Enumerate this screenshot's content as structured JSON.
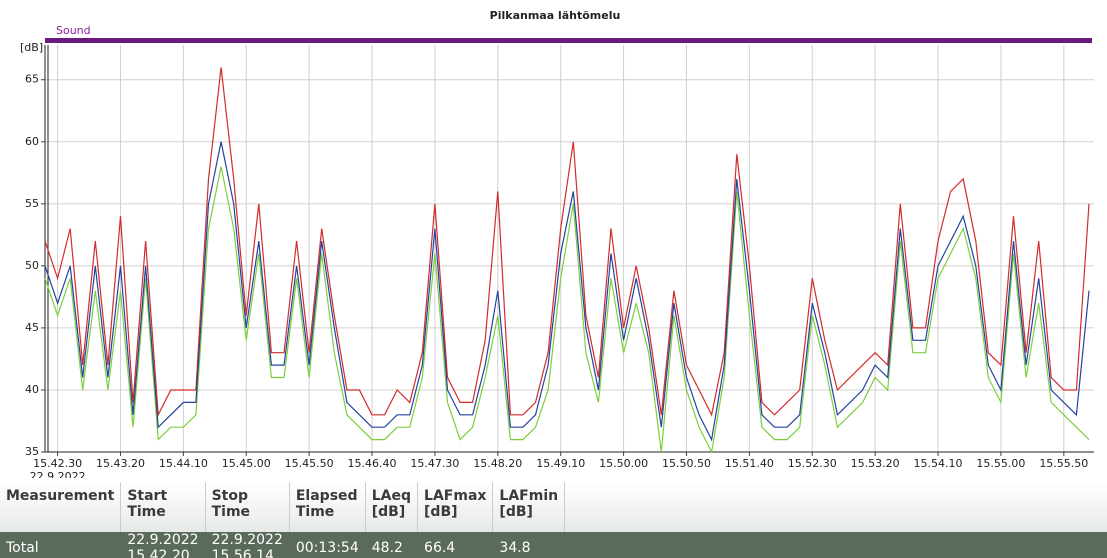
{
  "chart_data": {
    "type": "line",
    "title": "Pilkanmaa lähtömelu",
    "channel_label": "Sound",
    "ylabel": "[dB]",
    "x_date": "22.9.2022",
    "categories": [
      null,
      "15.42.30",
      null,
      null,
      null,
      null,
      "15.43.20",
      null,
      null,
      null,
      null,
      "15.44.10",
      null,
      null,
      null,
      null,
      "15.45.00",
      null,
      null,
      null,
      null,
      "15.45.50",
      null,
      null,
      null,
      null,
      "15.46.40",
      null,
      null,
      null,
      null,
      "15.47.30",
      null,
      null,
      null,
      null,
      "15.48.20",
      null,
      null,
      null,
      null,
      "15.49.10",
      null,
      null,
      null,
      null,
      "15.50.00",
      null,
      null,
      null,
      null,
      "15.50.50",
      null,
      null,
      null,
      null,
      "15.51.40",
      null,
      null,
      null,
      null,
      "15.52.30",
      null,
      null,
      null,
      null,
      "15.53.20",
      null,
      null,
      null,
      null,
      "15.54.10",
      null,
      null,
      null,
      null,
      "15.55.00",
      null,
      null,
      null,
      null,
      "15.55.50",
      null,
      null
    ],
    "series": [
      {
        "color": "#d42a2a",
        "values": [
          52,
          49,
          53,
          42,
          52,
          42,
          54,
          39,
          52,
          38,
          40,
          40,
          40,
          57,
          66,
          57,
          46,
          55,
          43,
          43,
          52,
          43,
          53,
          46,
          40,
          40,
          38,
          38,
          40,
          39,
          43,
          55,
          41,
          39,
          39,
          44,
          56,
          38,
          38,
          39,
          43,
          53,
          60,
          46,
          41,
          53,
          45,
          50,
          45,
          38,
          48,
          42,
          40,
          38,
          43,
          59,
          50,
          39,
          38,
          39,
          40,
          49,
          44,
          40,
          41,
          42,
          43,
          42,
          55,
          45,
          45,
          52,
          56,
          57,
          52,
          43,
          42,
          54,
          43,
          52,
          41,
          40,
          40,
          55
        ]
      },
      {
        "color": "#7ccf3c",
        "values": [
          49,
          46,
          49,
          40,
          48,
          40,
          48,
          37,
          49,
          36,
          37,
          37,
          38,
          53,
          58,
          53,
          44,
          51,
          41,
          41,
          49,
          41,
          51,
          43,
          38,
          37,
          36,
          36,
          37,
          37,
          41,
          51,
          39,
          36,
          37,
          41,
          46,
          36,
          36,
          37,
          40,
          49,
          55,
          43,
          39,
          49,
          43,
          47,
          43,
          35,
          46,
          40,
          37,
          35,
          41,
          56,
          46,
          37,
          36,
          36,
          37,
          46,
          42,
          37,
          38,
          39,
          41,
          40,
          52,
          43,
          43,
          49,
          51,
          53,
          49,
          41,
          39,
          51,
          41,
          47,
          39,
          38,
          37,
          36
        ]
      },
      {
        "color": "#2443a0",
        "values": [
          50,
          47,
          50,
          41,
          50,
          41,
          50,
          38,
          50,
          37,
          38,
          39,
          39,
          55,
          60,
          55,
          45,
          52,
          42,
          42,
          50,
          42,
          52,
          45,
          39,
          38,
          37,
          37,
          38,
          38,
          42,
          53,
          40,
          38,
          38,
          42,
          48,
          37,
          37,
          38,
          42,
          51,
          56,
          45,
          40,
          51,
          44,
          49,
          44,
          37,
          47,
          41,
          38,
          36,
          42,
          57,
          48,
          38,
          37,
          37,
          38,
          47,
          43,
          38,
          39,
          40,
          42,
          41,
          53,
          44,
          44,
          50,
          52,
          54,
          50,
          42,
          40,
          52,
          42,
          49,
          40,
          39,
          38,
          48
        ]
      }
    ],
    "ylim": [
      35,
      67.8
    ],
    "yticks": [
      35,
      40,
      45,
      50,
      55,
      60,
      65
    ],
    "grid": true
  },
  "table": {
    "header": [
      "Measurement",
      "Start Time",
      "Stop Time",
      "Elapsed Time",
      "LAeq\n[dB]",
      "LAFmax\n[dB]",
      "LAFmin\n[dB]"
    ],
    "rows": [
      [
        "Total",
        "22.9.2022 15.42.20",
        "22.9.2022 15.56.14",
        "00:13:54",
        "48.2",
        "66.4",
        "34.8"
      ]
    ]
  }
}
